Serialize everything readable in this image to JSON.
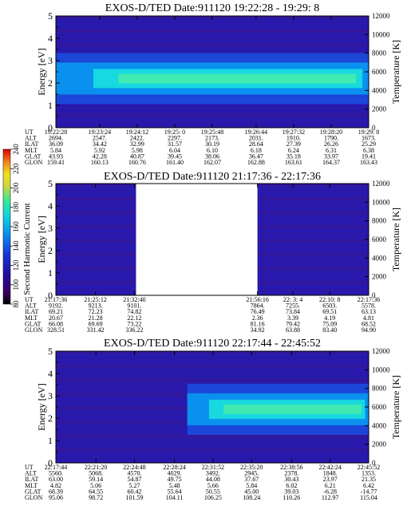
{
  "chart_data": [
    {
      "type": "heatmap",
      "title": "EXOS-D/TED   Date:911120  19:22:28 - 19:29: 8",
      "ylabel": "Energy [eV]",
      "y2label": "Temperature [K]",
      "ylim": [
        0,
        5
      ],
      "y2lim": [
        0,
        12000
      ],
      "yticks": [
        "0",
        "1",
        "2",
        "3",
        "4",
        "5"
      ],
      "y2ticks": [
        "0",
        "2000",
        "4000",
        "6000",
        "8000",
        "10000",
        "12000"
      ],
      "row_labels": [
        "UT",
        "ALT",
        "ILAT",
        "MLT",
        "GLAT",
        "GLON"
      ],
      "columns": [
        [
          "19:22:28",
          "2694.",
          "36.09",
          "5.84",
          "43.93",
          "159.41"
        ],
        [
          "19:23:24",
          "2547.",
          "34.42",
          "5.92",
          "42.28",
          "160.13"
        ],
        [
          "19:24:12",
          "2422.",
          "32.99",
          "5.98",
          "40.87",
          "160.76"
        ],
        [
          "19:25: 0",
          "2297.",
          "31.57",
          "6.04",
          "39.45",
          "161.40"
        ],
        [
          "19:25:48",
          "2173.",
          "30.19",
          "6.10",
          "38.06",
          "162.07"
        ],
        [
          "19:26:44",
          "2031.",
          "28.64",
          "6.18",
          "36.47",
          "162.88"
        ],
        [
          "19:27:32",
          "1910.",
          "27.39",
          "6.24",
          "35.18",
          "163.61"
        ],
        [
          "19:28:20",
          "1790.",
          "26.26",
          "6.31",
          "33.97",
          "164.37"
        ],
        [
          "19:29: 8",
          "1673.",
          "25.29",
          "6.38",
          "19.41",
          "163.43"
        ]
      ],
      "band": {
        "center_ev": 2.2,
        "spans": [
          [
            0.0,
            1.0
          ]
        ]
      }
    },
    {
      "type": "heatmap",
      "title": "EXOS-D/TED   Date:911120  21:17:36 - 22:17:36",
      "ylabel": "Energy [eV]",
      "y2label": "Temperature [K]",
      "ylim": [
        0,
        5
      ],
      "y2lim": [
        0,
        12000
      ],
      "yticks": [
        "0",
        "1",
        "2",
        "3",
        "4",
        "5"
      ],
      "y2ticks": [
        "0",
        "2000",
        "4000",
        "6000",
        "8000",
        "10000",
        "12000"
      ],
      "row_labels": [
        "UT",
        "ALT",
        "ILAT",
        "MLT",
        "GLAT",
        "GLON"
      ],
      "columns": [
        [
          "21:17:36",
          "9192.",
          "69.21",
          "20.67",
          "66.08",
          "328.51"
        ],
        [
          "21:25:12",
          "9213.",
          "72.23",
          "21.28",
          "69.69",
          "331.42"
        ],
        [
          "21:32:40",
          "9101.",
          "74.82",
          "22.12",
          "73.22",
          "336.22"
        ],
        [
          "21:56:16",
          "7864.",
          "76.49",
          "2.36",
          "81.16",
          "34.92"
        ],
        [
          "22: 3: 4",
          "7255.",
          "73.84",
          "3.39",
          "79.42",
          "63.88"
        ],
        [
          "22:10: 8",
          "6503.",
          "69.51",
          "4.19",
          "75.09",
          "83.40"
        ],
        [
          "22:17:36",
          "5578.",
          "63.13",
          "4.81",
          "68.52",
          "94.90"
        ]
      ],
      "data_gap": [
        "21:32:40",
        "21:56:16"
      ]
    },
    {
      "type": "heatmap",
      "title": "EXOS-D/TED   Date:911120  22:17:44 - 22:45:52",
      "ylabel": "Energy [eV]",
      "y2label": "Temperature [K]",
      "ylim": [
        0,
        5
      ],
      "y2lim": [
        0,
        12000
      ],
      "yticks": [
        "0",
        "1",
        "2",
        "3",
        "4",
        "5"
      ],
      "y2ticks": [
        "0",
        "2000",
        "4000",
        "6000",
        "8000",
        "10000",
        "12000"
      ],
      "row_labels": [
        "UT",
        "ALT",
        "ILAT",
        "MLT",
        "GLAT",
        "GLON"
      ],
      "columns": [
        [
          "22:17:44",
          "5560.",
          "63.00",
          "4.82",
          "68.39",
          "95.06"
        ],
        [
          "22:21:20",
          "5068.",
          "59.14",
          "5.06",
          "64.55",
          "98.72"
        ],
        [
          "22:24:48",
          "4570.",
          "54.87",
          "5.27",
          "60.42",
          "101.59"
        ],
        [
          "22:28:24",
          "4029.",
          "49.75",
          "5.48",
          "55.64",
          "104.11"
        ],
        [
          "22:31:52",
          "3492.",
          "44.08",
          "5.66",
          "50.55",
          "106.25"
        ],
        [
          "22:35:20",
          "2945.",
          "37.67",
          "5.84",
          "45.00",
          "108.24"
        ],
        [
          "22:38:56",
          "2378.",
          "30.43",
          "6.02",
          "39.03",
          "110.26"
        ],
        [
          "22:42:24",
          "1848.",
          "23.97",
          "6.21",
          "-6.28",
          "112.97"
        ],
        [
          "22:45:52",
          "1353.",
          "21.35",
          "6.42",
          "-14.77",
          "115.04"
        ]
      ],
      "band": {
        "center_ev": 2.4,
        "spans": [
          [
            0.42,
            1.0
          ]
        ]
      }
    }
  ],
  "colorbar": {
    "label": "Second Harmonic Current",
    "ticks": [
      "80",
      "100",
      "120",
      "140",
      "160",
      "180",
      "200",
      "220",
      "240"
    ],
    "colors": [
      "#000000",
      "#3a0066",
      "#2010a0",
      "#1a34d8",
      "#0a86ee",
      "#10d0e0",
      "#30e8a0",
      "#cbd83c",
      "#f0e020",
      "#f08020",
      "#e00000"
    ]
  }
}
